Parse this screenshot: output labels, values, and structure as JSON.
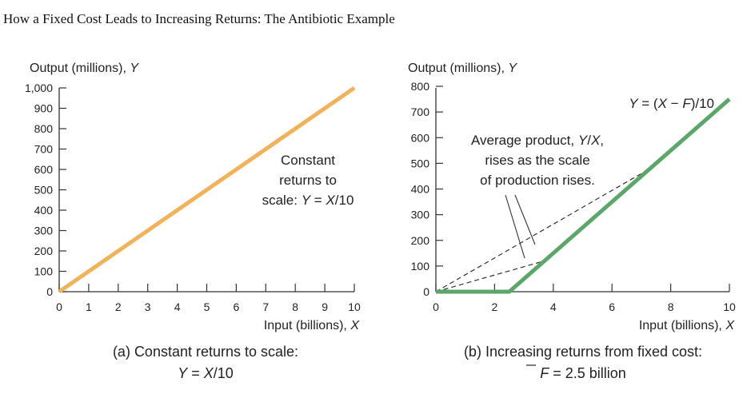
{
  "page": {
    "title": "How a Fixed Cost Leads to Increasing Returns: The Antibiotic Example"
  },
  "chart_data": [
    {
      "type": "line",
      "ylabel": "Output (millions), Y",
      "xlabel": "Input (billions), X",
      "xlim": [
        0,
        10
      ],
      "ylim": [
        0,
        1000
      ],
      "x_ticks": [
        "0",
        "1",
        "2",
        "3",
        "4",
        "5",
        "6",
        "7",
        "8",
        "9",
        "10"
      ],
      "y_ticks": [
        "0",
        "100",
        "200",
        "300",
        "400",
        "500",
        "600",
        "700",
        "800",
        "900",
        "1,000"
      ],
      "series": [
        {
          "x": [
            0,
            10
          ],
          "y": [
            0,
            1000
          ],
          "color": "#f2b25a"
        }
      ],
      "annotation": [
        "Constant",
        "returns to",
        "scale: Y = X/10"
      ],
      "caption": [
        "(a) Constant returns to scale:",
        "Y = X/10"
      ],
      "grid": false
    },
    {
      "type": "line",
      "ylabel": "Output (millions), Y",
      "xlabel": "Input (billions), X",
      "xlim": [
        0,
        10
      ],
      "ylim": [
        0,
        800
      ],
      "x_ticks": [
        "0",
        "2",
        "4",
        "6",
        "8",
        "10"
      ],
      "y_ticks": [
        "0",
        "100",
        "200",
        "300",
        "400",
        "500",
        "600",
        "700",
        "800"
      ],
      "series": [
        {
          "x": [
            0,
            2.5,
            10
          ],
          "y": [
            0,
            0,
            750
          ],
          "color": "#5aa66b"
        }
      ],
      "rays_to": [
        {
          "x": 3.7,
          "y": 120
        },
        {
          "x": 7.3,
          "y": 480
        }
      ],
      "line_label": "Y = (X − F)/10",
      "annotation": [
        "Average product, Y/X,",
        "rises as the scale",
        "of production rises."
      ],
      "caption": [
        "(b) Increasing returns from fixed cost:",
        "F = 2.5 billion"
      ],
      "grid": false
    }
  ]
}
